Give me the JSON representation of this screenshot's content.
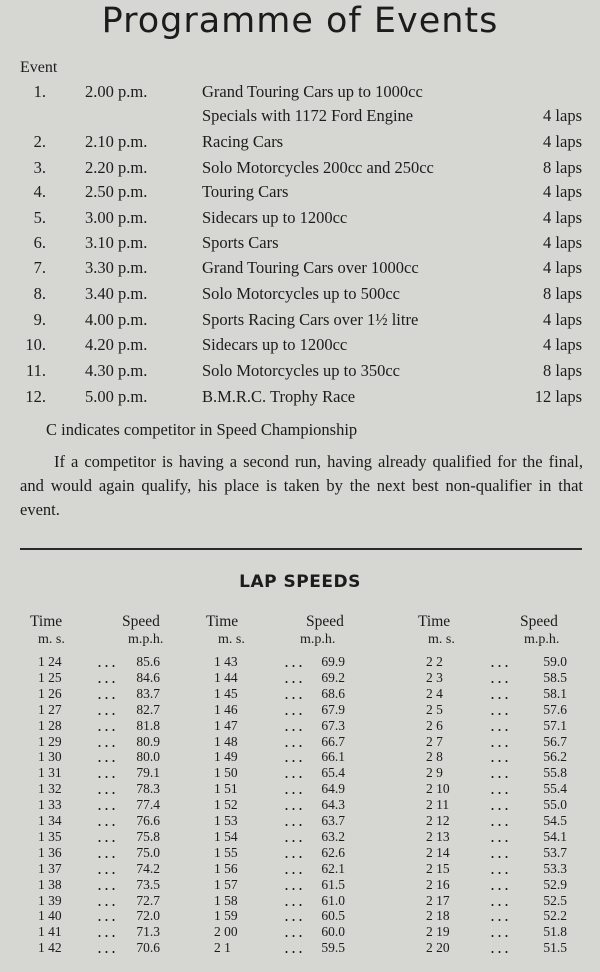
{
  "title": "Programme of Events",
  "event_header": "Event",
  "events": [
    {
      "number": "1.",
      "time": "2.00 p.m.",
      "name": [
        "Grand Touring Cars up to 1000cc",
        "Specials with 1172 Ford Engine"
      ],
      "laps": "4 laps"
    },
    {
      "number": "2.",
      "time": "2.10 p.m.",
      "name": [
        "Racing Cars"
      ],
      "laps": "4 laps"
    },
    {
      "number": "3.",
      "time": "2.20 p.m.",
      "name": [
        "Solo Motorcycles 200cc and 250cc"
      ],
      "laps": "8 laps"
    },
    {
      "number": "4.",
      "time": "2.50 p.m.",
      "name": [
        "Touring Cars"
      ],
      "laps": "4 laps"
    },
    {
      "number": "5.",
      "time": "3.00 p.m.",
      "name": [
        "Sidecars up to 1200cc"
      ],
      "laps": "4 laps"
    },
    {
      "number": "6.",
      "time": "3.10 p.m.",
      "name": [
        "Sports Cars"
      ],
      "laps": "4 laps"
    },
    {
      "number": "7.",
      "time": "3.30 p.m.",
      "name": [
        "Grand Touring Cars over 1000cc"
      ],
      "laps": "4 laps"
    },
    {
      "number": "8.",
      "time": "3.40 p.m.",
      "name": [
        "Solo Motorcycles up to 500cc"
      ],
      "laps": "8 laps"
    },
    {
      "number": "9.",
      "time": "4.00 p.m.",
      "name": [
        "Sports Racing Cars over 1½ litre"
      ],
      "laps": "4 laps"
    },
    {
      "number": "10.",
      "time": "4.20 p.m.",
      "name": [
        "Sidecars up to 1200cc"
      ],
      "laps": "4 laps"
    },
    {
      "number": "11.",
      "time": "4.30 p.m.",
      "name": [
        "Solo Motorcycles up to 350cc"
      ],
      "laps": "8 laps"
    },
    {
      "number": "12.",
      "time": "5.00 p.m.",
      "name": [
        "B.M.R.C. Trophy Race"
      ],
      "laps": "12 laps"
    }
  ],
  "note": "C indicates competitor in Speed Championship",
  "paragraph": "If a competitor is having a second run, having already qualified for the final, and would again qualify, his place is taken by the next best non-qualifier in that event.",
  "lap_speeds": {
    "title": "LAP SPEEDS",
    "columns": [
      {
        "time_header": "Time",
        "time_unit": "m. s.",
        "speed_header": "Speed",
        "speed_unit": "m.p.h.",
        "rows": [
          [
            "1 24",
            "85.6"
          ],
          [
            "1 25",
            "84.6"
          ],
          [
            "1 26",
            "83.7"
          ],
          [
            "1 27",
            "82.7"
          ],
          [
            "1 28",
            "81.8"
          ],
          [
            "1 29",
            "80.9"
          ],
          [
            "1 30",
            "80.0"
          ],
          [
            "1 31",
            "79.1"
          ],
          [
            "1 32",
            "78.3"
          ],
          [
            "1 33",
            "77.4"
          ],
          [
            "1 34",
            "76.6"
          ],
          [
            "1 35",
            "75.8"
          ],
          [
            "1 36",
            "75.0"
          ],
          [
            "1 37",
            "74.2"
          ],
          [
            "1 38",
            "73.5"
          ],
          [
            "1 39",
            "72.7"
          ],
          [
            "1 40",
            "72.0"
          ],
          [
            "1 41",
            "71.3"
          ],
          [
            "1 42",
            "70.6"
          ]
        ]
      },
      {
        "time_header": "Time",
        "time_unit": "m. s.",
        "speed_header": "Speed",
        "speed_unit": "m.p.h.",
        "rows": [
          [
            "1 43",
            "69.9"
          ],
          [
            "1 44",
            "69.2"
          ],
          [
            "1 45",
            "68.6"
          ],
          [
            "1 46",
            "67.9"
          ],
          [
            "1 47",
            "67.3"
          ],
          [
            "1 48",
            "66.7"
          ],
          [
            "1 49",
            "66.1"
          ],
          [
            "1 50",
            "65.4"
          ],
          [
            "1 51",
            "64.9"
          ],
          [
            "1 52",
            "64.3"
          ],
          [
            "1 53",
            "63.7"
          ],
          [
            "1 54",
            "63.2"
          ],
          [
            "1 55",
            "62.6"
          ],
          [
            "1 56",
            "62.1"
          ],
          [
            "1 57",
            "61.5"
          ],
          [
            "1 58",
            "61.0"
          ],
          [
            "1 59",
            "60.5"
          ],
          [
            "2 00",
            "60.0"
          ],
          [
            "2 1",
            "59.5"
          ]
        ]
      },
      {
        "time_header": "Time",
        "time_unit": "m. s.",
        "speed_header": "Speed",
        "speed_unit": "m.p.h.",
        "rows": [
          [
            "2 2",
            "59.0"
          ],
          [
            "2 3",
            "58.5"
          ],
          [
            "2 4",
            "58.1"
          ],
          [
            "2 5",
            "57.6"
          ],
          [
            "2 6",
            "57.1"
          ],
          [
            "2 7",
            "56.7"
          ],
          [
            "2 8",
            "56.2"
          ],
          [
            "2 9",
            "55.8"
          ],
          [
            "2 10",
            "55.4"
          ],
          [
            "2 11",
            "55.0"
          ],
          [
            "2 12",
            "54.5"
          ],
          [
            "2 13",
            "54.1"
          ],
          [
            "2 14",
            "53.7"
          ],
          [
            "2 15",
            "53.3"
          ],
          [
            "2 16",
            "52.9"
          ],
          [
            "2 17",
            "52.5"
          ],
          [
            "2 18",
            "52.2"
          ],
          [
            "2 19",
            "51.8"
          ],
          [
            "2 20",
            "51.5"
          ]
        ]
      }
    ]
  }
}
